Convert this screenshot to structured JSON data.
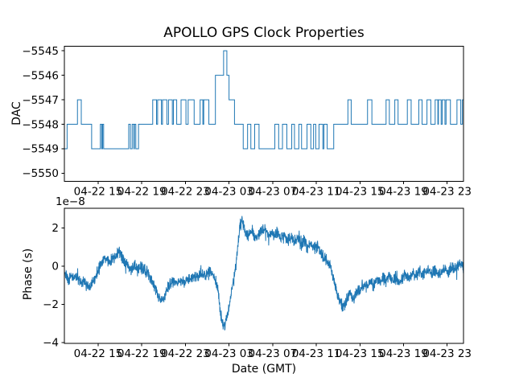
{
  "figure": {
    "title": "APOLLO GPS Clock Properties",
    "background": "#ffffff",
    "text_color": "#000000",
    "spine_color": "#000000",
    "line_color": "#1f77b4"
  },
  "chart_data": [
    {
      "type": "line",
      "name": "dac",
      "series_label": "DAC value",
      "ylabel": "DAC",
      "xlabel": "",
      "drawstyle": "steps-post",
      "grid": false,
      "legend": "none",
      "xlim": [
        11.9,
        48.5
      ],
      "ylim": [
        -5550.33,
        -5544.82
      ],
      "yticks": [
        -5545,
        -5546,
        -5547,
        -5548,
        -5549,
        -5550
      ],
      "ytick_labels": [
        "−5545",
        "−5546",
        "−5547",
        "−5548",
        "−5549",
        "−5550"
      ],
      "xticks": [
        15,
        19,
        23,
        27,
        31,
        35,
        39,
        43,
        47
      ],
      "xtick_labels": [
        "04-22 15",
        "04-22 19",
        "04-22 23",
        "04-23 03",
        "04-23 07",
        "04-23 11",
        "04-23 15",
        "04-23 19",
        "04-23 23"
      ],
      "steps": [
        [
          11.93,
          -5549
        ],
        [
          12.15,
          -5548
        ],
        [
          13.1,
          -5547
        ],
        [
          13.45,
          -5548
        ],
        [
          14.4,
          -5549
        ],
        [
          15.2,
          -5548
        ],
        [
          15.32,
          -5549
        ],
        [
          15.4,
          -5548
        ],
        [
          15.5,
          -5549
        ],
        [
          17.8,
          -5548
        ],
        [
          17.95,
          -5549
        ],
        [
          18.12,
          -5548
        ],
        [
          18.27,
          -5549
        ],
        [
          18.32,
          -5548
        ],
        [
          18.45,
          -5549
        ],
        [
          18.7,
          -5548
        ],
        [
          20.0,
          -5547
        ],
        [
          20.35,
          -5548
        ],
        [
          20.45,
          -5547
        ],
        [
          20.8,
          -5548
        ],
        [
          20.9,
          -5547
        ],
        [
          21.3,
          -5548
        ],
        [
          21.45,
          -5547
        ],
        [
          21.8,
          -5548
        ],
        [
          21.9,
          -5547
        ],
        [
          22.2,
          -5548
        ],
        [
          22.6,
          -5547
        ],
        [
          23.05,
          -5548
        ],
        [
          23.25,
          -5547
        ],
        [
          23.8,
          -5548
        ],
        [
          24.35,
          -5547
        ],
        [
          24.6,
          -5548
        ],
        [
          24.68,
          -5547
        ],
        [
          25.15,
          -5548
        ],
        [
          25.75,
          -5546
        ],
        [
          26.5,
          -5545
        ],
        [
          26.8,
          -5546
        ],
        [
          27.0,
          -5547
        ],
        [
          27.5,
          -5548
        ],
        [
          28.3,
          -5549
        ],
        [
          28.7,
          -5548
        ],
        [
          29.0,
          -5549
        ],
        [
          29.35,
          -5548
        ],
        [
          29.75,
          -5549
        ],
        [
          31.2,
          -5548
        ],
        [
          31.55,
          -5549
        ],
        [
          31.9,
          -5548
        ],
        [
          32.3,
          -5549
        ],
        [
          32.75,
          -5548
        ],
        [
          33.0,
          -5549
        ],
        [
          33.4,
          -5548
        ],
        [
          33.65,
          -5549
        ],
        [
          34.15,
          -5548
        ],
        [
          34.5,
          -5549
        ],
        [
          34.75,
          -5548
        ],
        [
          34.95,
          -5549
        ],
        [
          35.25,
          -5548
        ],
        [
          35.6,
          -5549
        ],
        [
          35.7,
          -5548
        ],
        [
          36.0,
          -5549
        ],
        [
          36.6,
          -5548
        ],
        [
          37.9,
          -5547
        ],
        [
          38.2,
          -5548
        ],
        [
          39.7,
          -5547
        ],
        [
          40.1,
          -5548
        ],
        [
          41.4,
          -5547
        ],
        [
          41.7,
          -5548
        ],
        [
          42.2,
          -5547
        ],
        [
          42.5,
          -5548
        ],
        [
          43.35,
          -5547
        ],
        [
          43.7,
          -5548
        ],
        [
          44.4,
          -5547
        ],
        [
          44.7,
          -5548
        ],
        [
          45.15,
          -5547
        ],
        [
          45.5,
          -5548
        ],
        [
          45.9,
          -5547
        ],
        [
          46.15,
          -5548
        ],
        [
          46.2,
          -5547
        ],
        [
          46.45,
          -5548
        ],
        [
          46.55,
          -5547
        ],
        [
          46.8,
          -5548
        ],
        [
          46.9,
          -5547
        ],
        [
          47.3,
          -5548
        ],
        [
          47.9,
          -5547
        ],
        [
          48.25,
          -5548
        ],
        [
          48.4,
          -5547
        ],
        [
          48.5,
          -5547
        ]
      ]
    },
    {
      "type": "line",
      "name": "phase",
      "series_label": "Phase",
      "ylabel": "Phase (s)",
      "xlabel": "Date (GMT)",
      "offset_text": "1e−8",
      "unit_scale": 1e-08,
      "grid": false,
      "legend": "none",
      "xlim": [
        11.9,
        48.5
      ],
      "ylim": [
        -4.05,
        3.02
      ],
      "yticks": [
        -4,
        -2,
        0,
        2
      ],
      "ytick_labels": [
        "−4",
        "−2",
        "0",
        "2"
      ],
      "xticks": [
        15,
        19,
        23,
        27,
        31,
        35,
        39,
        43,
        47
      ],
      "xtick_labels": [
        "04-22 15",
        "04-22 19",
        "04-22 23",
        "04-23 03",
        "04-23 07",
        "04-23 11",
        "04-23 15",
        "04-23 19",
        "04-23 23"
      ],
      "anchors": [
        [
          11.95,
          -0.4
        ],
        [
          12.3,
          -0.7
        ],
        [
          12.7,
          -0.45
        ],
        [
          13.1,
          -0.65
        ],
        [
          13.5,
          -0.8
        ],
        [
          13.9,
          -1.0
        ],
        [
          14.2,
          -1.15
        ],
        [
          14.5,
          -0.9
        ],
        [
          14.8,
          -0.55
        ],
        [
          15.1,
          -0.1
        ],
        [
          15.4,
          0.25
        ],
        [
          15.7,
          0.45
        ],
        [
          16.0,
          0.2
        ],
        [
          16.3,
          0.35
        ],
        [
          16.6,
          0.55
        ],
        [
          16.9,
          0.85
        ],
        [
          17.1,
          0.5
        ],
        [
          17.4,
          0.25
        ],
        [
          17.7,
          0.05
        ],
        [
          18.0,
          -0.2
        ],
        [
          18.3,
          0.1
        ],
        [
          18.6,
          -0.25
        ],
        [
          18.9,
          -0.05
        ],
        [
          19.2,
          -0.15
        ],
        [
          19.5,
          -0.35
        ],
        [
          19.8,
          -0.6
        ],
        [
          20.1,
          -1.0
        ],
        [
          20.4,
          -1.45
        ],
        [
          20.75,
          -1.85
        ],
        [
          21.1,
          -1.5
        ],
        [
          21.4,
          -1.15
        ],
        [
          21.7,
          -0.85
        ],
        [
          22.0,
          -0.7
        ],
        [
          22.3,
          -0.95
        ],
        [
          22.6,
          -0.7
        ],
        [
          22.9,
          -0.85
        ],
        [
          23.2,
          -0.6
        ],
        [
          23.5,
          -0.75
        ],
        [
          23.8,
          -0.5
        ],
        [
          24.1,
          -0.65
        ],
        [
          24.4,
          -0.35
        ],
        [
          24.7,
          -0.5
        ],
        [
          25.0,
          -0.4
        ],
        [
          25.3,
          -0.3
        ],
        [
          25.7,
          -0.55
        ],
        [
          26.0,
          -1.3
        ],
        [
          26.2,
          -2.4
        ],
        [
          26.4,
          -3.0
        ],
        [
          26.55,
          -3.25
        ],
        [
          26.7,
          -2.95
        ],
        [
          26.9,
          -2.45
        ],
        [
          27.1,
          -1.8
        ],
        [
          27.35,
          -1.0
        ],
        [
          27.6,
          -0.1
        ],
        [
          27.8,
          1.1
        ],
        [
          28.0,
          2.1
        ],
        [
          28.2,
          2.35
        ],
        [
          28.5,
          1.7
        ],
        [
          28.8,
          1.55
        ],
        [
          29.1,
          1.85
        ],
        [
          29.4,
          1.5
        ],
        [
          29.7,
          1.7
        ],
        [
          30.0,
          1.85
        ],
        [
          30.3,
          2.0
        ],
        [
          30.6,
          1.65
        ],
        [
          30.9,
          1.85
        ],
        [
          31.2,
          1.6
        ],
        [
          31.5,
          1.8
        ],
        [
          31.8,
          1.45
        ],
        [
          32.1,
          1.6
        ],
        [
          32.4,
          1.35
        ],
        [
          32.7,
          1.5
        ],
        [
          33.0,
          1.3
        ],
        [
          33.3,
          1.45
        ],
        [
          33.6,
          1.15
        ],
        [
          33.9,
          1.3
        ],
        [
          34.2,
          1.0
        ],
        [
          34.5,
          1.15
        ],
        [
          34.8,
          0.9
        ],
        [
          35.1,
          1.05
        ],
        [
          35.4,
          0.75
        ],
        [
          35.7,
          0.5
        ],
        [
          36.0,
          0.3
        ],
        [
          36.3,
          -0.1
        ],
        [
          36.6,
          -0.7
        ],
        [
          36.9,
          -1.4
        ],
        [
          37.2,
          -1.9
        ],
        [
          37.5,
          -2.15
        ],
        [
          37.8,
          -1.75
        ],
        [
          38.1,
          -1.5
        ],
        [
          38.4,
          -1.7
        ],
        [
          38.7,
          -1.45
        ],
        [
          39.0,
          -1.2
        ],
        [
          39.3,
          -0.95
        ],
        [
          39.6,
          -1.1
        ],
        [
          39.9,
          -0.85
        ],
        [
          40.2,
          -1.0
        ],
        [
          40.5,
          -0.7
        ],
        [
          40.8,
          -0.9
        ],
        [
          41.1,
          -0.6
        ],
        [
          41.4,
          -0.85
        ],
        [
          41.7,
          -0.55
        ],
        [
          42.0,
          -0.75
        ],
        [
          42.3,
          -0.5
        ],
        [
          42.6,
          -0.8
        ],
        [
          42.9,
          -0.6
        ],
        [
          43.2,
          -0.45
        ],
        [
          43.5,
          -0.6
        ],
        [
          43.8,
          -0.35
        ],
        [
          44.1,
          -0.5
        ],
        [
          44.4,
          -0.25
        ],
        [
          44.7,
          -0.45
        ],
        [
          45.0,
          -0.3
        ],
        [
          45.3,
          -0.15
        ],
        [
          45.6,
          -0.35
        ],
        [
          45.9,
          -0.2
        ],
        [
          46.2,
          -0.45
        ],
        [
          46.5,
          -0.25
        ],
        [
          46.8,
          -0.1
        ],
        [
          47.1,
          -0.3
        ],
        [
          47.4,
          -0.05
        ],
        [
          47.7,
          -0.2
        ],
        [
          48.0,
          0.0
        ],
        [
          48.2,
          0.15
        ],
        [
          48.5,
          -0.05
        ]
      ],
      "noise": {
        "seed": 20240422,
        "amplitude": 0.38,
        "spike_prob": 0.035,
        "spike_scale": 2.3,
        "points": 2000
      }
    }
  ]
}
